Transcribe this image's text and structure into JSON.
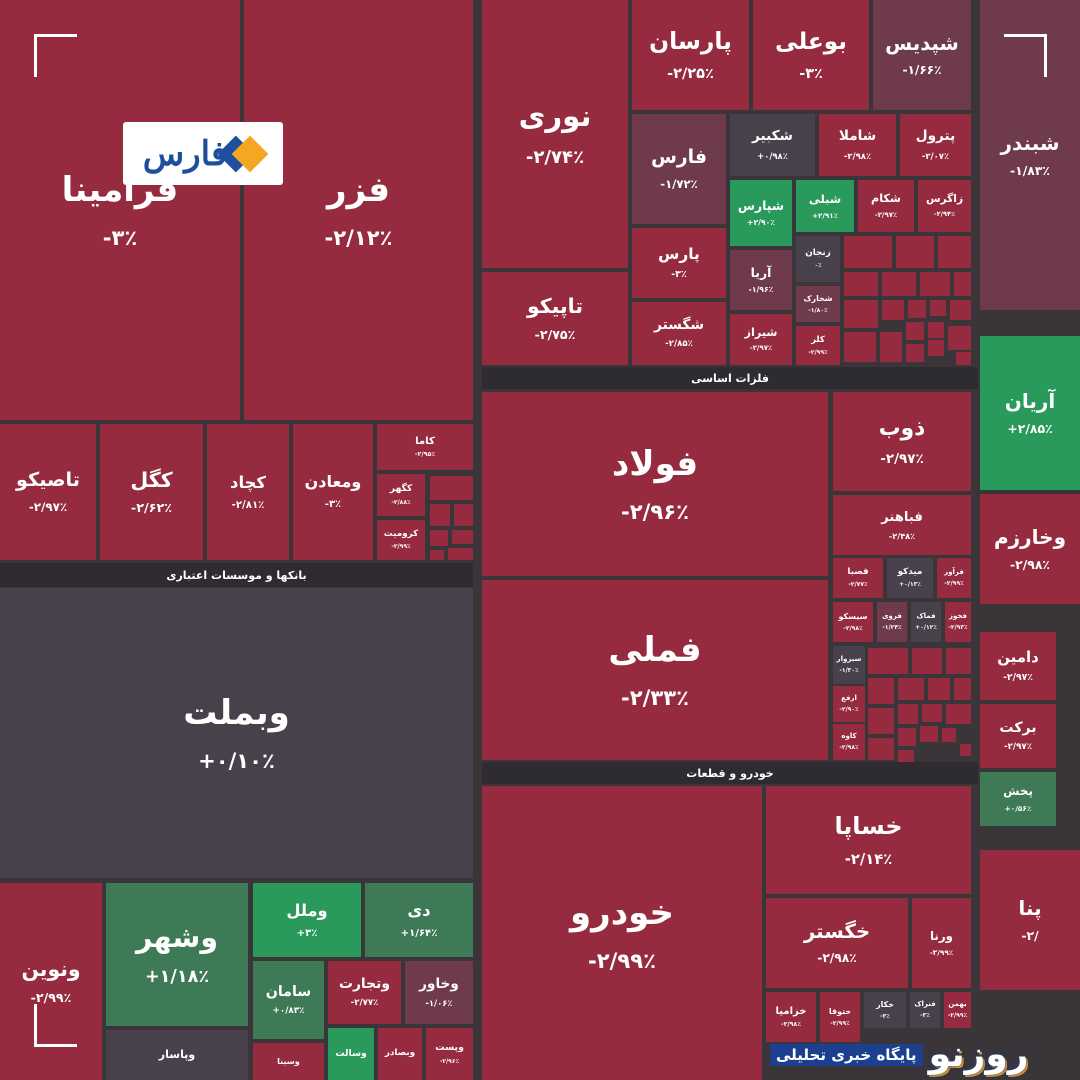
{
  "logos": {
    "fars": "فارس",
    "rooznoo": "روزنو",
    "rooznoo_tagline": "پایگاه خبری تحلیلی"
  },
  "sectors": [
    "بانکها و موسسات اعتباری",
    "فلزات اساسی",
    "خودرو و قطعات"
  ],
  "tiles": [
    {
      "name": "فرامینا",
      "change": "-۳٪"
    },
    {
      "name": "فزر",
      "change": "-۲/۱۲٪"
    },
    {
      "name": "تاصیکو",
      "change": "-۲/۹۷٪"
    },
    {
      "name": "کگل",
      "change": "-۲/۶۲٪"
    },
    {
      "name": "کچاد",
      "change": "-۲/۸۱٪"
    },
    {
      "name": "ومعادن",
      "change": "-۳٪"
    },
    {
      "name": "کاما",
      "change": "-۲/۹۵٪"
    },
    {
      "name": "کگهر",
      "change": "-۲/۸۸٪"
    },
    {
      "name": "کرومیت",
      "change": "-۲/۹۹٪"
    },
    {
      "name": "وبملت",
      "change": "+۰/۱۰٪"
    },
    {
      "name": "ونوین",
      "change": "-۲/۹۹٪"
    },
    {
      "name": "وشهر",
      "change": "+۱/۱۸٪"
    },
    {
      "name": "وپاسار"
    },
    {
      "name": "وملل",
      "change": "+۳٪"
    },
    {
      "name": "دی",
      "change": "+۱/۶۴٪"
    },
    {
      "name": "سامان",
      "change": "+۰/۸۳٪"
    },
    {
      "name": "وتجارت",
      "change": "-۲/۷۷٪"
    },
    {
      "name": "وخاور",
      "change": "-۱/۰۶٪"
    },
    {
      "name": "وسینا"
    },
    {
      "name": "وسالت"
    },
    {
      "name": "وبصادر"
    },
    {
      "name": "وپست",
      "change": "-۲/۹۶٪"
    },
    {
      "name": "نوری",
      "change": "-۲/۷۴٪"
    },
    {
      "name": "تاپیکو",
      "change": "-۲/۷۵٪"
    },
    {
      "name": "پارسان",
      "change": "-۲/۲۵٪"
    },
    {
      "name": "بوعلی",
      "change": "-۳٪"
    },
    {
      "name": "شپدیس",
      "change": "-۱/۶۶٪"
    },
    {
      "name": "فارس",
      "change": "-۱/۷۲٪"
    },
    {
      "name": "شکبیر",
      "change": "+۰/۹۸٪"
    },
    {
      "name": "شاملا",
      "change": "-۲/۹۸٪"
    },
    {
      "name": "پترول",
      "change": "-۲/۰۷٪"
    },
    {
      "name": "شپارس",
      "change": "+۲/۹۰٪"
    },
    {
      "name": "شبلی",
      "change": "+۲/۹۱٪"
    },
    {
      "name": "شکام",
      "change": "-۲/۹۷٪"
    },
    {
      "name": "زاگرس",
      "change": "-۲/۹۴٪"
    },
    {
      "name": "پارس",
      "change": "-۳٪"
    },
    {
      "name": "زنجان",
      "change": "۰٪"
    },
    {
      "name": "آریا",
      "change": "-۱/۹۶٪"
    },
    {
      "name": "شخارک",
      "change": "-۱/۸۰٪"
    },
    {
      "name": "شگستر",
      "change": "-۲/۸۵٪"
    },
    {
      "name": "شیراز",
      "change": "-۲/۹۷٪"
    },
    {
      "name": "کلر",
      "change": "-۲/۹۹٪"
    },
    {
      "name": "فولاد",
      "change": "-۲/۹۶٪"
    },
    {
      "name": "ذوب",
      "change": "-۲/۹۷٪"
    },
    {
      "name": "فباهنر",
      "change": "-۲/۴۸٪"
    },
    {
      "name": "فصبا",
      "change": "-۲/۷۷٪"
    },
    {
      "name": "میدکو",
      "change": "+۰/۱۳٪"
    },
    {
      "name": "فرآور",
      "change": "-۲/۹۹٪"
    },
    {
      "name": "سیسکو",
      "change": "-۲/۹۸٪"
    },
    {
      "name": "فروی",
      "change": "-۱/۲۴٪"
    },
    {
      "name": "فماک",
      "change": "+۰/۱۲٪"
    },
    {
      "name": "فخوز",
      "change": "-۲/۹۳٪"
    },
    {
      "name": "سبزوار",
      "change": "-۱/۳۰٪"
    },
    {
      "name": "ارفع",
      "change": "-۲/۹۰٪"
    },
    {
      "name": "کاوه",
      "change": "-۲/۹۸٪"
    },
    {
      "name": "فملی",
      "change": "-۲/۳۳٪"
    },
    {
      "name": "خودرو",
      "change": "-۲/۹۹٪"
    },
    {
      "name": "خساپا",
      "change": "-۲/۱۴٪"
    },
    {
      "name": "خگستر",
      "change": "-۲/۹۸٪"
    },
    {
      "name": "ورنا",
      "change": "-۲/۹۹٪"
    },
    {
      "name": "خزامیا",
      "change": "-۲/۹۸٪"
    },
    {
      "name": "ختوقا",
      "change": "-۲/۹۹٪"
    },
    {
      "name": "خکار",
      "change": "-۳٪"
    },
    {
      "name": "فنراک",
      "change": "-۳٪"
    },
    {
      "name": "بهمن",
      "change": "-۲/۹۹٪"
    },
    {
      "name": "شبندر",
      "change": "-۱/۸۳٪"
    },
    {
      "name": "آریان",
      "change": "+۲/۸۵٪"
    },
    {
      "name": "وخارزم",
      "change": "-۲/۹۸٪"
    },
    {
      "name": "دامین",
      "change": "-۲/۹۷٪"
    },
    {
      "name": "برکت",
      "change": "-۲/۹۷٪"
    },
    {
      "name": "پخش",
      "change": "+۰/۵۶٪"
    },
    {
      "name": "پنا",
      "change": "-۲/"
    }
  ]
}
